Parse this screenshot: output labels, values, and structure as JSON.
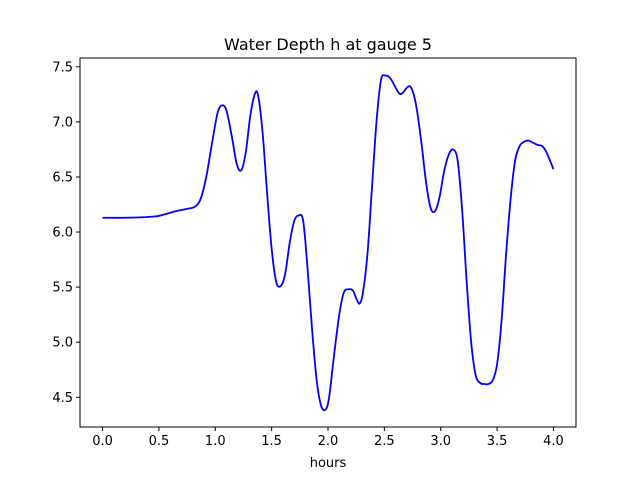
{
  "chart_data": {
    "type": "line",
    "title": "Water Depth h at gauge 5",
    "xlabel": "hours",
    "ylabel": "",
    "xlim": [
      -0.2,
      4.2
    ],
    "ylim": [
      4.23,
      7.58
    ],
    "xticks": [
      0.0,
      0.5,
      1.0,
      1.5,
      2.0,
      2.5,
      3.0,
      3.5,
      4.0
    ],
    "xtick_labels": [
      "0.0",
      "0.5",
      "1.0",
      "1.5",
      "2.0",
      "2.5",
      "3.0",
      "3.5",
      "4.0"
    ],
    "yticks": [
      4.5,
      5.0,
      5.5,
      6.0,
      6.5,
      7.0,
      7.5
    ],
    "ytick_labels": [
      "4.5",
      "5.0",
      "5.5",
      "6.0",
      "6.5",
      "7.0",
      "7.5"
    ],
    "grid": false,
    "series": [
      {
        "color": "#0000ff",
        "x": [
          0.0,
          0.2,
          0.45,
          0.55,
          0.65,
          0.75,
          0.82,
          0.87,
          0.92,
          0.97,
          1.02,
          1.06,
          1.1,
          1.15,
          1.19,
          1.23,
          1.27,
          1.31,
          1.35,
          1.38,
          1.42,
          1.46,
          1.5,
          1.54,
          1.58,
          1.62,
          1.66,
          1.7,
          1.74,
          1.78,
          1.82,
          1.86,
          1.9,
          1.94,
          1.98,
          2.01,
          2.05,
          2.1,
          2.14,
          2.18,
          2.22,
          2.25,
          2.28,
          2.31,
          2.35,
          2.39,
          2.43,
          2.47,
          2.51,
          2.55,
          2.59,
          2.63,
          2.66,
          2.7,
          2.73,
          2.76,
          2.79,
          2.83,
          2.87,
          2.91,
          2.95,
          2.99,
          3.03,
          3.07,
          3.11,
          3.15,
          3.19,
          3.23,
          3.27,
          3.31,
          3.35,
          3.39,
          3.42,
          3.46,
          3.5,
          3.54,
          3.58,
          3.62,
          3.66,
          3.7,
          3.74,
          3.78,
          3.82,
          3.86,
          3.9,
          3.94,
          4.0
        ],
        "y": [
          6.13,
          6.13,
          6.14,
          6.16,
          6.19,
          6.21,
          6.23,
          6.3,
          6.5,
          6.8,
          7.08,
          7.15,
          7.1,
          6.85,
          6.62,
          6.56,
          6.72,
          7.05,
          7.25,
          7.24,
          6.9,
          6.35,
          5.85,
          5.55,
          5.51,
          5.62,
          5.9,
          6.1,
          6.15,
          6.1,
          5.65,
          5.1,
          4.65,
          4.42,
          4.39,
          4.5,
          4.85,
          5.25,
          5.45,
          5.48,
          5.47,
          5.4,
          5.35,
          5.45,
          5.8,
          6.4,
          7.0,
          7.38,
          7.42,
          7.4,
          7.33,
          7.26,
          7.26,
          7.31,
          7.32,
          7.25,
          7.1,
          6.8,
          6.45,
          6.22,
          6.19,
          6.32,
          6.55,
          6.7,
          6.75,
          6.65,
          6.2,
          5.55,
          5.0,
          4.7,
          4.63,
          4.62,
          4.62,
          4.65,
          4.8,
          5.2,
          5.8,
          6.3,
          6.65,
          6.78,
          6.82,
          6.83,
          6.81,
          6.79,
          6.78,
          6.72,
          6.57
        ]
      }
    ]
  }
}
